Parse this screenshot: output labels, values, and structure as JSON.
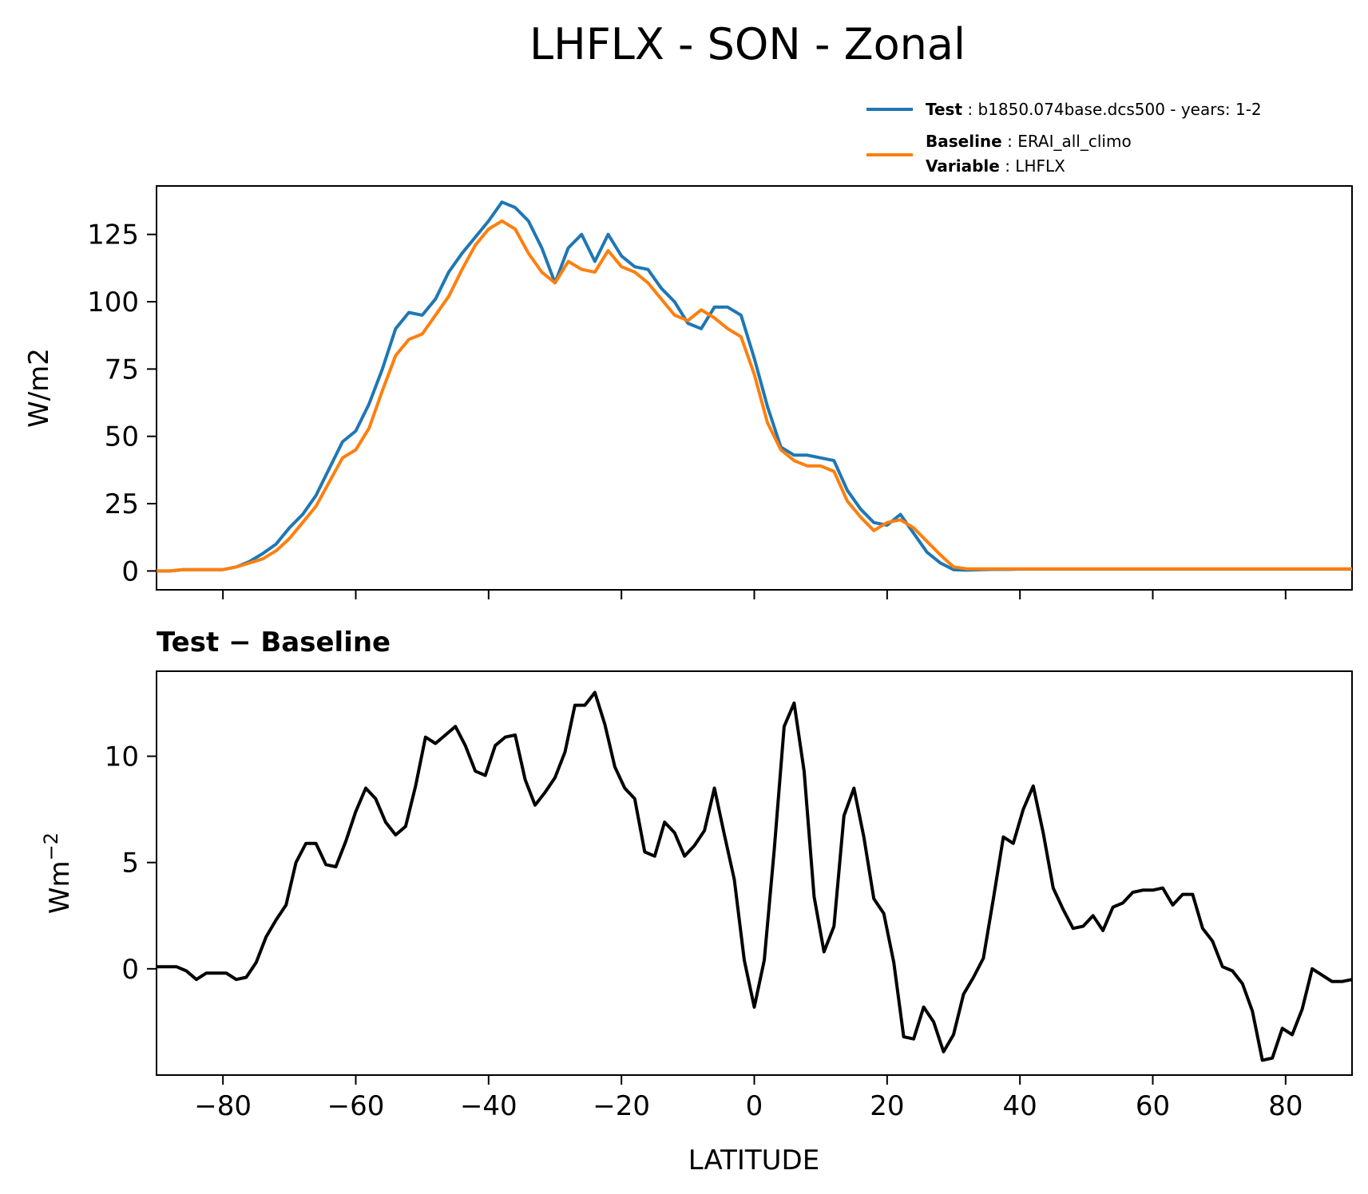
{
  "figure": {
    "title": "LHFLX - SON - Zonal",
    "legend": [
      {
        "key": "Test",
        "value": "b1850.074base.dcs500 - years: 1-2",
        "color": "#1f77b4"
      },
      {
        "key": "Baseline",
        "value": "ERAI_all_climo",
        "color": "#ff7f0e"
      },
      {
        "key": "Variable",
        "value": "LHFLX"
      }
    ]
  },
  "chart_data": [
    {
      "type": "line",
      "title": "",
      "xlabel": "",
      "ylabel": "W/m2",
      "xlim": [
        -90,
        90
      ],
      "ylim": [
        -7,
        143
      ],
      "xticks": [
        -80,
        -60,
        -40,
        -20,
        0,
        20,
        40,
        60,
        80
      ],
      "yticks": [
        0,
        25,
        50,
        75,
        100,
        125
      ],
      "ytick_labels": [
        "0",
        "25",
        "50",
        "75",
        "100",
        "125"
      ],
      "legend_position": "top-right, above axes",
      "x": [
        -90,
        -88,
        -86,
        -84,
        -82,
        -80,
        -78,
        -76,
        -74,
        -72,
        -70,
        -68,
        -66,
        -64,
        -62,
        -60,
        -58,
        -56,
        -54,
        -52,
        -50,
        -48,
        -46,
        -44,
        -42,
        -40,
        -38,
        -36,
        -34,
        -32,
        -30,
        -28,
        -26,
        -24,
        -22,
        -20,
        -18,
        -16,
        -14,
        -12,
        -10,
        -8,
        -6,
        -4,
        -2,
        0,
        2,
        4,
        6,
        8,
        10,
        12,
        14,
        16,
        18,
        20,
        22,
        24,
        26,
        28,
        30,
        32,
        34,
        36,
        38,
        40,
        42,
        44,
        46,
        48,
        50,
        52,
        54,
        56,
        58,
        60,
        62,
        64,
        66,
        68,
        70,
        72,
        74,
        76,
        78,
        80,
        82,
        84,
        86,
        88,
        90
      ],
      "series": [
        {
          "name": "Test",
          "color": "#1f77b4",
          "values": [
            0,
            0,
            0.5,
            0.5,
            0.5,
            0.5,
            1.5,
            3.5,
            6.5,
            10,
            16,
            21,
            28,
            38,
            48,
            52,
            62,
            75,
            90,
            96,
            95,
            101,
            111,
            118,
            124,
            130,
            137,
            135,
            130,
            120,
            107,
            120,
            125,
            115,
            125,
            117,
            113,
            112,
            105,
            100,
            92,
            90,
            98,
            98,
            95,
            79,
            61,
            46,
            43,
            43,
            42,
            41,
            30,
            23,
            18,
            17,
            21,
            14,
            7,
            3,
            0.5,
            0.3,
            0.5,
            0.6,
            0.6,
            0.7,
            0.7,
            0.7,
            0.7,
            0.7,
            0.7,
            0.7,
            0.7,
            0.7,
            0.7,
            0.7,
            0.7,
            0.7,
            0.7,
            0.7,
            0.7,
            0.7,
            0.7,
            0.7,
            0.7,
            0.7,
            0.7,
            0.7,
            0.7,
            0.7,
            0.7
          ]
        },
        {
          "name": "Baseline",
          "color": "#ff7f0e",
          "values": [
            0,
            0,
            0.5,
            0.5,
            0.5,
            0.5,
            1.5,
            3,
            4.5,
            7.5,
            12,
            18,
            24,
            33,
            42,
            45,
            53,
            67,
            80,
            86,
            88,
            95,
            102,
            112,
            121,
            127,
            130,
            127,
            118,
            111,
            107,
            115,
            112,
            111,
            119,
            113,
            111,
            107,
            101,
            95,
            93,
            97,
            94,
            90,
            87,
            73,
            55,
            45,
            41,
            39,
            39,
            37,
            26,
            20,
            15,
            18,
            19,
            16,
            11,
            6,
            1.5,
            0.8,
            0.8,
            0.8,
            0.8,
            0.8,
            0.8,
            0.8,
            0.8,
            0.8,
            0.8,
            0.8,
            0.8,
            0.8,
            0.8,
            0.8,
            0.8,
            0.8,
            0.8,
            0.8,
            0.8,
            0.8,
            0.8,
            0.8,
            0.8,
            0.8,
            0.8,
            0.8,
            0.8,
            0.8,
            0.8
          ]
        }
      ]
    },
    {
      "type": "line",
      "title": "Test − Baseline",
      "xlabel": "LATITUDE",
      "ylabel": "Wm",
      "ylabel_sup": "−2",
      "xlim": [
        -90,
        90
      ],
      "ylim": [
        -5,
        14
      ],
      "xticks": [
        -80,
        -60,
        -40,
        -20,
        0,
        20,
        40,
        60,
        80
      ],
      "xtick_labels": [
        "−80",
        "−60",
        "−40",
        "−20",
        "0",
        "20",
        "40",
        "60",
        "80"
      ],
      "yticks": [
        0,
        5,
        10
      ],
      "ytick_labels": [
        "0",
        "5",
        "10"
      ],
      "x": [
        -90,
        -88.5,
        -87,
        -85.5,
        -84,
        -82.5,
        -81,
        -79.5,
        -78,
        -76.5,
        -75,
        -73.5,
        -72,
        -70.5,
        -69,
        -67.5,
        -66,
        -64.5,
        -63,
        -61.5,
        -60,
        -58.5,
        -57,
        -55.5,
        -54,
        -52.5,
        -51,
        -49.5,
        -48,
        -46.5,
        -45,
        -43.5,
        -42,
        -40.5,
        -39,
        -37.5,
        -36,
        -34.5,
        -33,
        -31.5,
        -30,
        -28.5,
        -27,
        -25.5,
        -24,
        -22.5,
        -21,
        -19.5,
        -18,
        -16.5,
        -15,
        -13.5,
        -12,
        -10.5,
        -9,
        -7.5,
        -6,
        -4.5,
        -3,
        -1.5,
        0,
        1.5,
        3,
        4.5,
        6,
        7.5,
        9,
        10.5,
        12,
        13.5,
        15,
        16.5,
        18,
        19.5,
        21,
        22.5,
        24,
        25.5,
        27,
        28.5,
        30,
        31.5,
        33,
        34.5,
        36,
        37.5,
        39,
        40.5,
        42,
        43.5,
        45,
        46.5,
        48,
        49.5,
        51,
        52.5,
        54,
        55.5,
        57,
        58.5,
        60,
        61.5,
        63,
        64.5,
        66,
        67.5,
        69,
        70.5,
        72,
        73.5,
        75,
        76.5,
        78,
        79.5,
        81,
        82.5,
        84,
        85.5,
        87,
        88.5,
        90
      ],
      "series": [
        {
          "name": "",
          "color": "#000000",
          "values": [
            0.1,
            0.1,
            0.1,
            -0.1,
            -0.5,
            -0.2,
            -0.2,
            -0.2,
            -0.5,
            -0.4,
            0.3,
            1.5,
            2.3,
            3,
            5,
            5.9,
            5.9,
            4.9,
            4.8,
            6,
            7.4,
            8.5,
            8,
            6.9,
            6.3,
            6.7,
            8.6,
            10.9,
            10.6,
            11,
            11.4,
            10.5,
            9.3,
            9.1,
            10.5,
            10.9,
            11,
            8.9,
            7.7,
            8.3,
            9,
            10.2,
            12.4,
            12.4,
            13,
            11.5,
            9.5,
            8.5,
            8,
            5.5,
            5.3,
            6.9,
            6.4,
            5.3,
            5.8,
            6.5,
            8.5,
            6.3,
            4.2,
            0.4,
            -1.8,
            0.4,
            5.6,
            11.4,
            12.5,
            9.3,
            3.4,
            0.8,
            2,
            7.2,
            8.5,
            6.2,
            3.3,
            2.6,
            0.3,
            -3.2,
            -3.3,
            -1.8,
            -2.5,
            -3.9,
            -3.1,
            -1.2,
            -0.4,
            0.5,
            3.3,
            6.2,
            5.9,
            7.5,
            8.6,
            6.4,
            3.8,
            2.8,
            1.9,
            2,
            2.5,
            1.8,
            2.9,
            3.1,
            3.6,
            3.7,
            3.7,
            3.8,
            3,
            3.5,
            3.5,
            1.9,
            1.3,
            0.1,
            -0.1,
            -0.7,
            -2,
            -4.3,
            -4.2,
            -2.8,
            -3.1,
            -1.9,
            0,
            -0.3,
            -0.6,
            -0.6,
            -0.5
          ]
        }
      ]
    }
  ]
}
